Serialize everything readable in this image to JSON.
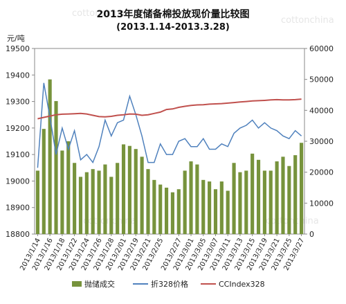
{
  "title": "2013年度储备棉投放现价量比较图",
  "subtitle": "(2013.1.14-2013.3.28)",
  "y_unit": "元/吨",
  "watermark": "cottonchina",
  "chart_data": {
    "type": "bar+line",
    "title": "2013年度储备棉投放现价量比较图",
    "subtitle": "(2013.1.14-2013.3.28)",
    "ylabel": "元/吨",
    "ylim": [
      18800,
      19500
    ],
    "y_ticks": [
      18800,
      18900,
      19000,
      19100,
      19200,
      19300,
      19400,
      19500
    ],
    "y2lim": [
      0,
      60000
    ],
    "y2_ticks": [
      0,
      10000,
      20000,
      30000,
      40000,
      50000,
      60000
    ],
    "grid": false,
    "legend_placement": "bottom",
    "x_tick_labels": [
      "2013/1/14",
      "2013/1/16",
      "2013/1/18",
      "2013/1/22",
      "2013/1/24",
      "2013/1/26",
      "2013/1/28",
      "2013/2/01",
      "2013/2/19",
      "2013/2/21",
      "2013/2/25",
      "2013/2/27",
      "2013/3/01",
      "2013/3/05",
      "2013/3/07",
      "2013/3/11",
      "2013/3/13",
      "2013/3/15",
      "2013/3/19",
      "2013/3/21",
      "2013/3/25",
      "2013/3/27"
    ],
    "series": [
      {
        "name": "抛储成交",
        "type": "bar",
        "axis": "right",
        "color": "#77933c",
        "values": [
          20500,
          34000,
          50000,
          43000,
          27000,
          30000,
          23000,
          18500,
          20000,
          21000,
          20500,
          22500,
          18500,
          23000,
          29000,
          28500,
          27500,
          25000,
          21000,
          17500,
          16000,
          15000,
          13500,
          14500,
          20500,
          23500,
          22500,
          17500,
          17000,
          14500,
          17000,
          14000,
          23000,
          20000,
          20500,
          26000,
          24000,
          20500,
          20500,
          23500,
          25000,
          22000,
          25500,
          29500
        ]
      },
      {
        "name": "折328价格",
        "type": "line",
        "axis": "left",
        "color": "#4f81bd",
        "values": [
          19050,
          19370,
          19240,
          19100,
          19200,
          19120,
          19190,
          19080,
          19100,
          19070,
          19130,
          19230,
          19170,
          19220,
          19230,
          19320,
          19250,
          19170,
          19070,
          19070,
          19140,
          19100,
          19100,
          19150,
          19160,
          19130,
          19130,
          19160,
          19120,
          19120,
          19140,
          19130,
          19180,
          19200,
          19210,
          19230,
          19200,
          19220,
          19200,
          19190,
          19170,
          19160,
          19190,
          19170
        ],
        "values_approx": true
      },
      {
        "name": "CCIndex328",
        "type": "line",
        "axis": "left",
        "color": "#c0504d",
        "values": [
          19235,
          19240,
          19245,
          19250,
          19252,
          19253,
          19254,
          19255,
          19253,
          19248,
          19243,
          19242,
          19244,
          19248,
          19250,
          19253,
          19252,
          19248,
          19250,
          19255,
          19260,
          19270,
          19272,
          19278,
          19282,
          19285,
          19287,
          19288,
          19290,
          19291,
          19292,
          19294,
          19296,
          19298,
          19300,
          19302,
          19303,
          19304,
          19306,
          19307,
          19306,
          19306,
          19307,
          19309
        ],
        "values_approx": true
      }
    ]
  }
}
